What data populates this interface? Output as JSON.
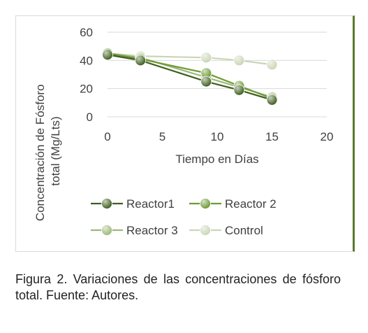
{
  "chart_data": {
    "type": "line",
    "title": "",
    "xlabel": "Tiempo en Días",
    "ylabel": "Concentración de Fósforo total (Mg/Lts)",
    "ylabel_lines": [
      "Concentración de Fósforo",
      "total (Mg/Lts)"
    ],
    "xlim": [
      0,
      20
    ],
    "ylim": [
      0,
      60
    ],
    "xticks": [
      0,
      5,
      10,
      15,
      20
    ],
    "yticks": [
      0,
      20,
      40,
      60
    ],
    "grid": "horizontal",
    "legend_position": "bottom",
    "series": [
      {
        "name": "Reactor1",
        "color": "#3f5f1f",
        "x": [
          0,
          3,
          9,
          12,
          15
        ],
        "y": [
          44,
          40,
          25,
          19,
          12
        ]
      },
      {
        "name": "Reactor 2",
        "color": "#6e9a35",
        "x": [
          0,
          3,
          9,
          12,
          15
        ],
        "y": [
          45,
          41,
          31,
          22,
          13
        ]
      },
      {
        "name": "Reactor 3",
        "color": "#9cb878",
        "x": [
          0,
          3,
          9,
          12,
          15
        ],
        "y": [
          45,
          42,
          28,
          21,
          14
        ]
      },
      {
        "name": "Control",
        "color": "#c9d6b6",
        "x": [
          0,
          3,
          9,
          12,
          15
        ],
        "y": [
          45,
          43,
          42,
          40,
          37
        ]
      }
    ]
  },
  "caption": "Figura 2. Variaciones de las concentraciones de fósforo total.  Fuente: Autores."
}
